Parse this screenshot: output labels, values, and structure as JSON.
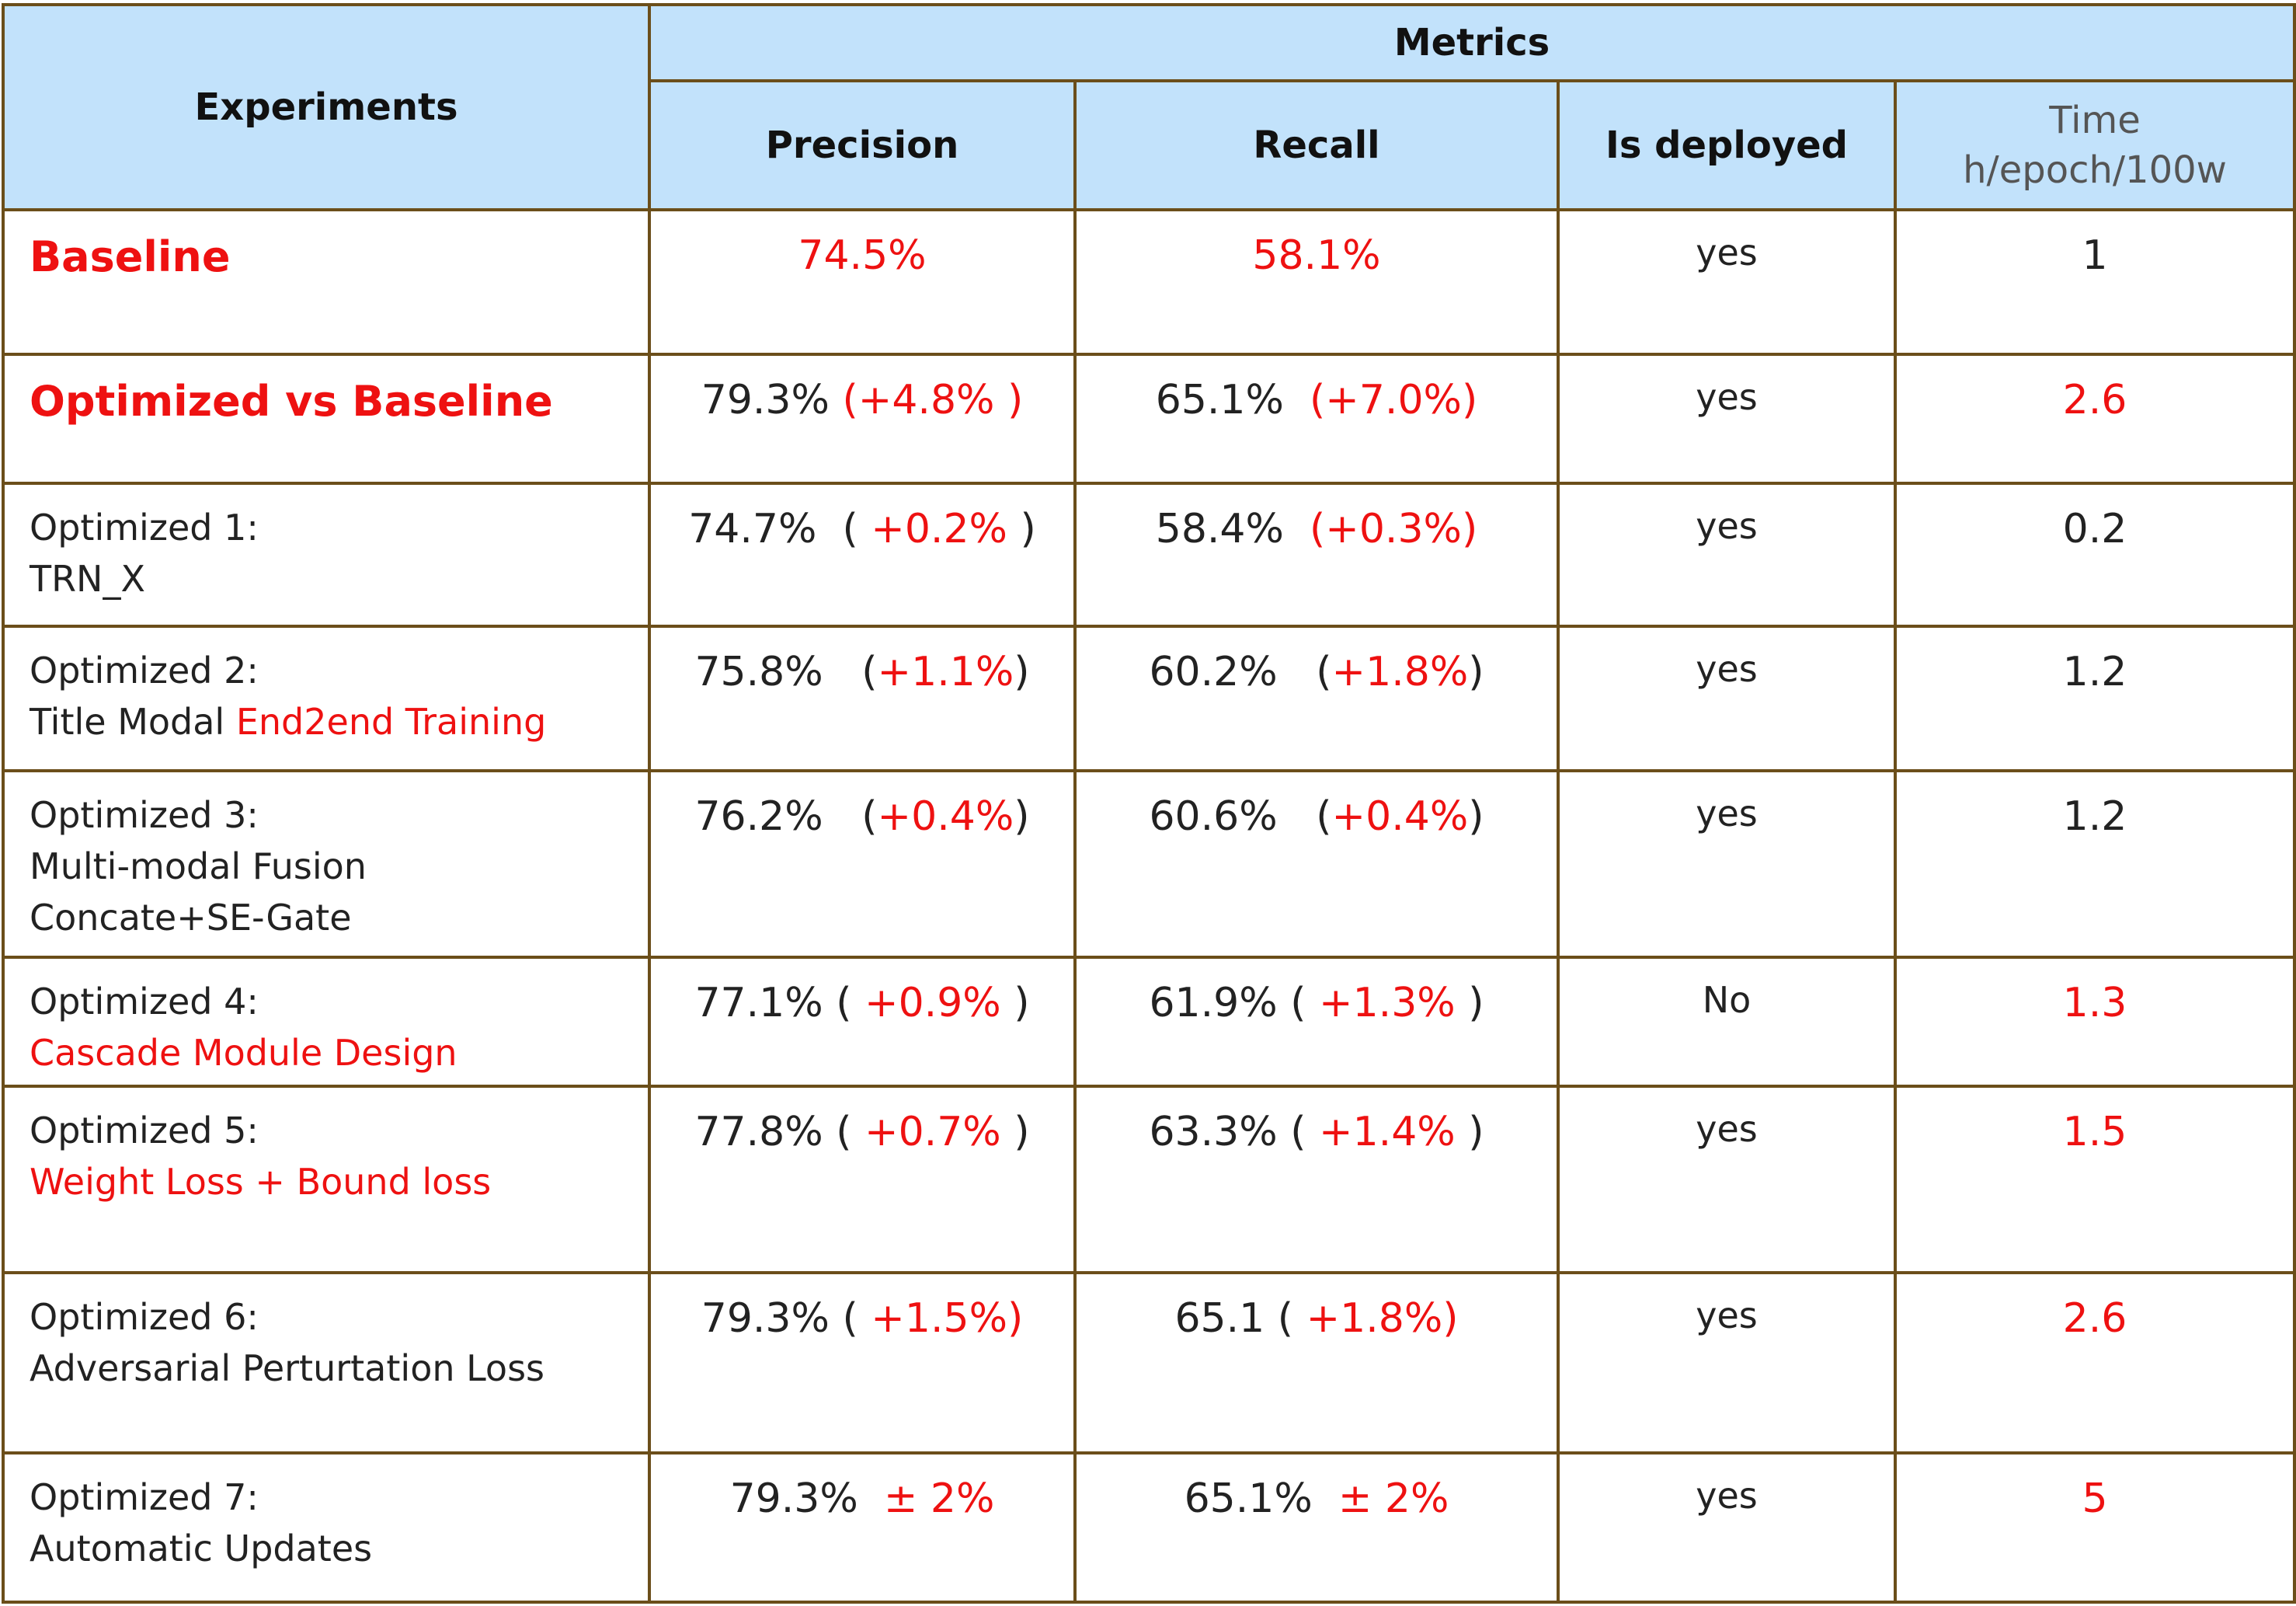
{
  "header": {
    "experiments": "Experiments",
    "metrics": "Metrics",
    "precision": "Precision",
    "recall": "Recall",
    "deployed": "Is deployed",
    "time_line1": "Time",
    "time_line2": "h/epoch/100w"
  },
  "colors": {
    "header_bg": "#c2e2fb",
    "border": "#6b4e1a",
    "highlight": "#ee1111",
    "text": "#222222"
  },
  "rows": [
    {
      "line1": "Baseline",
      "line2": "",
      "line3": "",
      "p_val": "74.5%",
      "p_open": "",
      "p_delta": "",
      "p_close": "",
      "r_val": "58.1%",
      "r_open": "",
      "r_delta": "",
      "r_close": "",
      "deployed": "yes",
      "time": "1"
    },
    {
      "line1": "Optimized vs Baseline",
      "line2": "",
      "line3": "",
      "p_val": "79.3% ",
      "p_open": "",
      "p_delta": "(+4.8% )",
      "p_close": "",
      "r_val": "65.1%  ",
      "r_open": "",
      "r_delta": "(+7.0%)",
      "r_close": "",
      "deployed": "yes",
      "time": "2.6"
    },
    {
      "line1": "Optimized 1:",
      "line2": "TRN_X",
      "line3": "",
      "p_val": "74.7%  ",
      "p_open": "( ",
      "p_delta": "+0.2%",
      "p_close": " )",
      "r_val": "58.4%  ",
      "r_open": "",
      "r_delta": "(+0.3%)",
      "r_close": "",
      "deployed": "yes",
      "time": "0.2"
    },
    {
      "line1": "Optimized 2:",
      "line2": "Title Modal ",
      "line2_red": "End2end Training",
      "line3": "",
      "p_val": "75.8%   ",
      "p_open": "(",
      "p_delta": "+1.1%",
      "p_close": ")",
      "r_val": "60.2%   ",
      "r_open": "(",
      "r_delta": "+1.8%",
      "r_close": ")",
      "deployed": "yes",
      "time": "1.2"
    },
    {
      "line1": "Optimized 3:",
      "line2": "Multi-modal Fusion",
      "line3": "Concate+SE-Gate",
      "p_val": "76.2%   ",
      "p_open": "(",
      "p_delta": "+0.4%",
      "p_close": ")",
      "r_val": "60.6%   ",
      "r_open": "(",
      "r_delta": "+0.4%",
      "r_close": ")",
      "deployed": "yes",
      "time": "1.2"
    },
    {
      "line1": "Optimized 4:",
      "line2": "",
      "line2_red": "Cascade Module Design",
      "line3": "",
      "p_val": "77.1% ",
      "p_open": "( ",
      "p_delta": "+0.9%",
      "p_close": " )",
      "r_val": "61.9% ",
      "r_open": "( ",
      "r_delta": "+1.3%",
      "r_close": " )",
      "deployed": "No",
      "time": "1.3"
    },
    {
      "line1": "Optimized 5:",
      "line2": "",
      "line2_red": "Weight Loss +  Bound loss",
      "line3": "",
      "p_val": "77.8% ",
      "p_open": "( ",
      "p_delta": "+0.7%",
      "p_close": " )",
      "r_val": "63.3% ",
      "r_open": "( ",
      "r_delta": "+1.4%",
      "r_close": " )",
      "deployed": "yes",
      "time": "1.5"
    },
    {
      "line1": "Optimized 6:",
      "line2": "Adversarial Perturtation Loss",
      "line3": "",
      "p_val": "79.3% ",
      "p_open": "( ",
      "p_delta": "+1.5%)",
      "p_close": "",
      "r_val": "65.1 ",
      "r_open": "( ",
      "r_delta": "+1.8%)",
      "r_close": "",
      "deployed": "yes",
      "time": "2.6"
    },
    {
      "line1": "Optimized 7:",
      "line2": "Automatic Updates",
      "line3": "",
      "p_val": "79.3%  ",
      "p_open": "",
      "p_delta": "± 2%",
      "p_close": "",
      "r_val": "65.1%  ",
      "r_open": "",
      "r_delta": "± 2%",
      "r_close": "",
      "deployed": "yes",
      "time": "5"
    }
  ]
}
